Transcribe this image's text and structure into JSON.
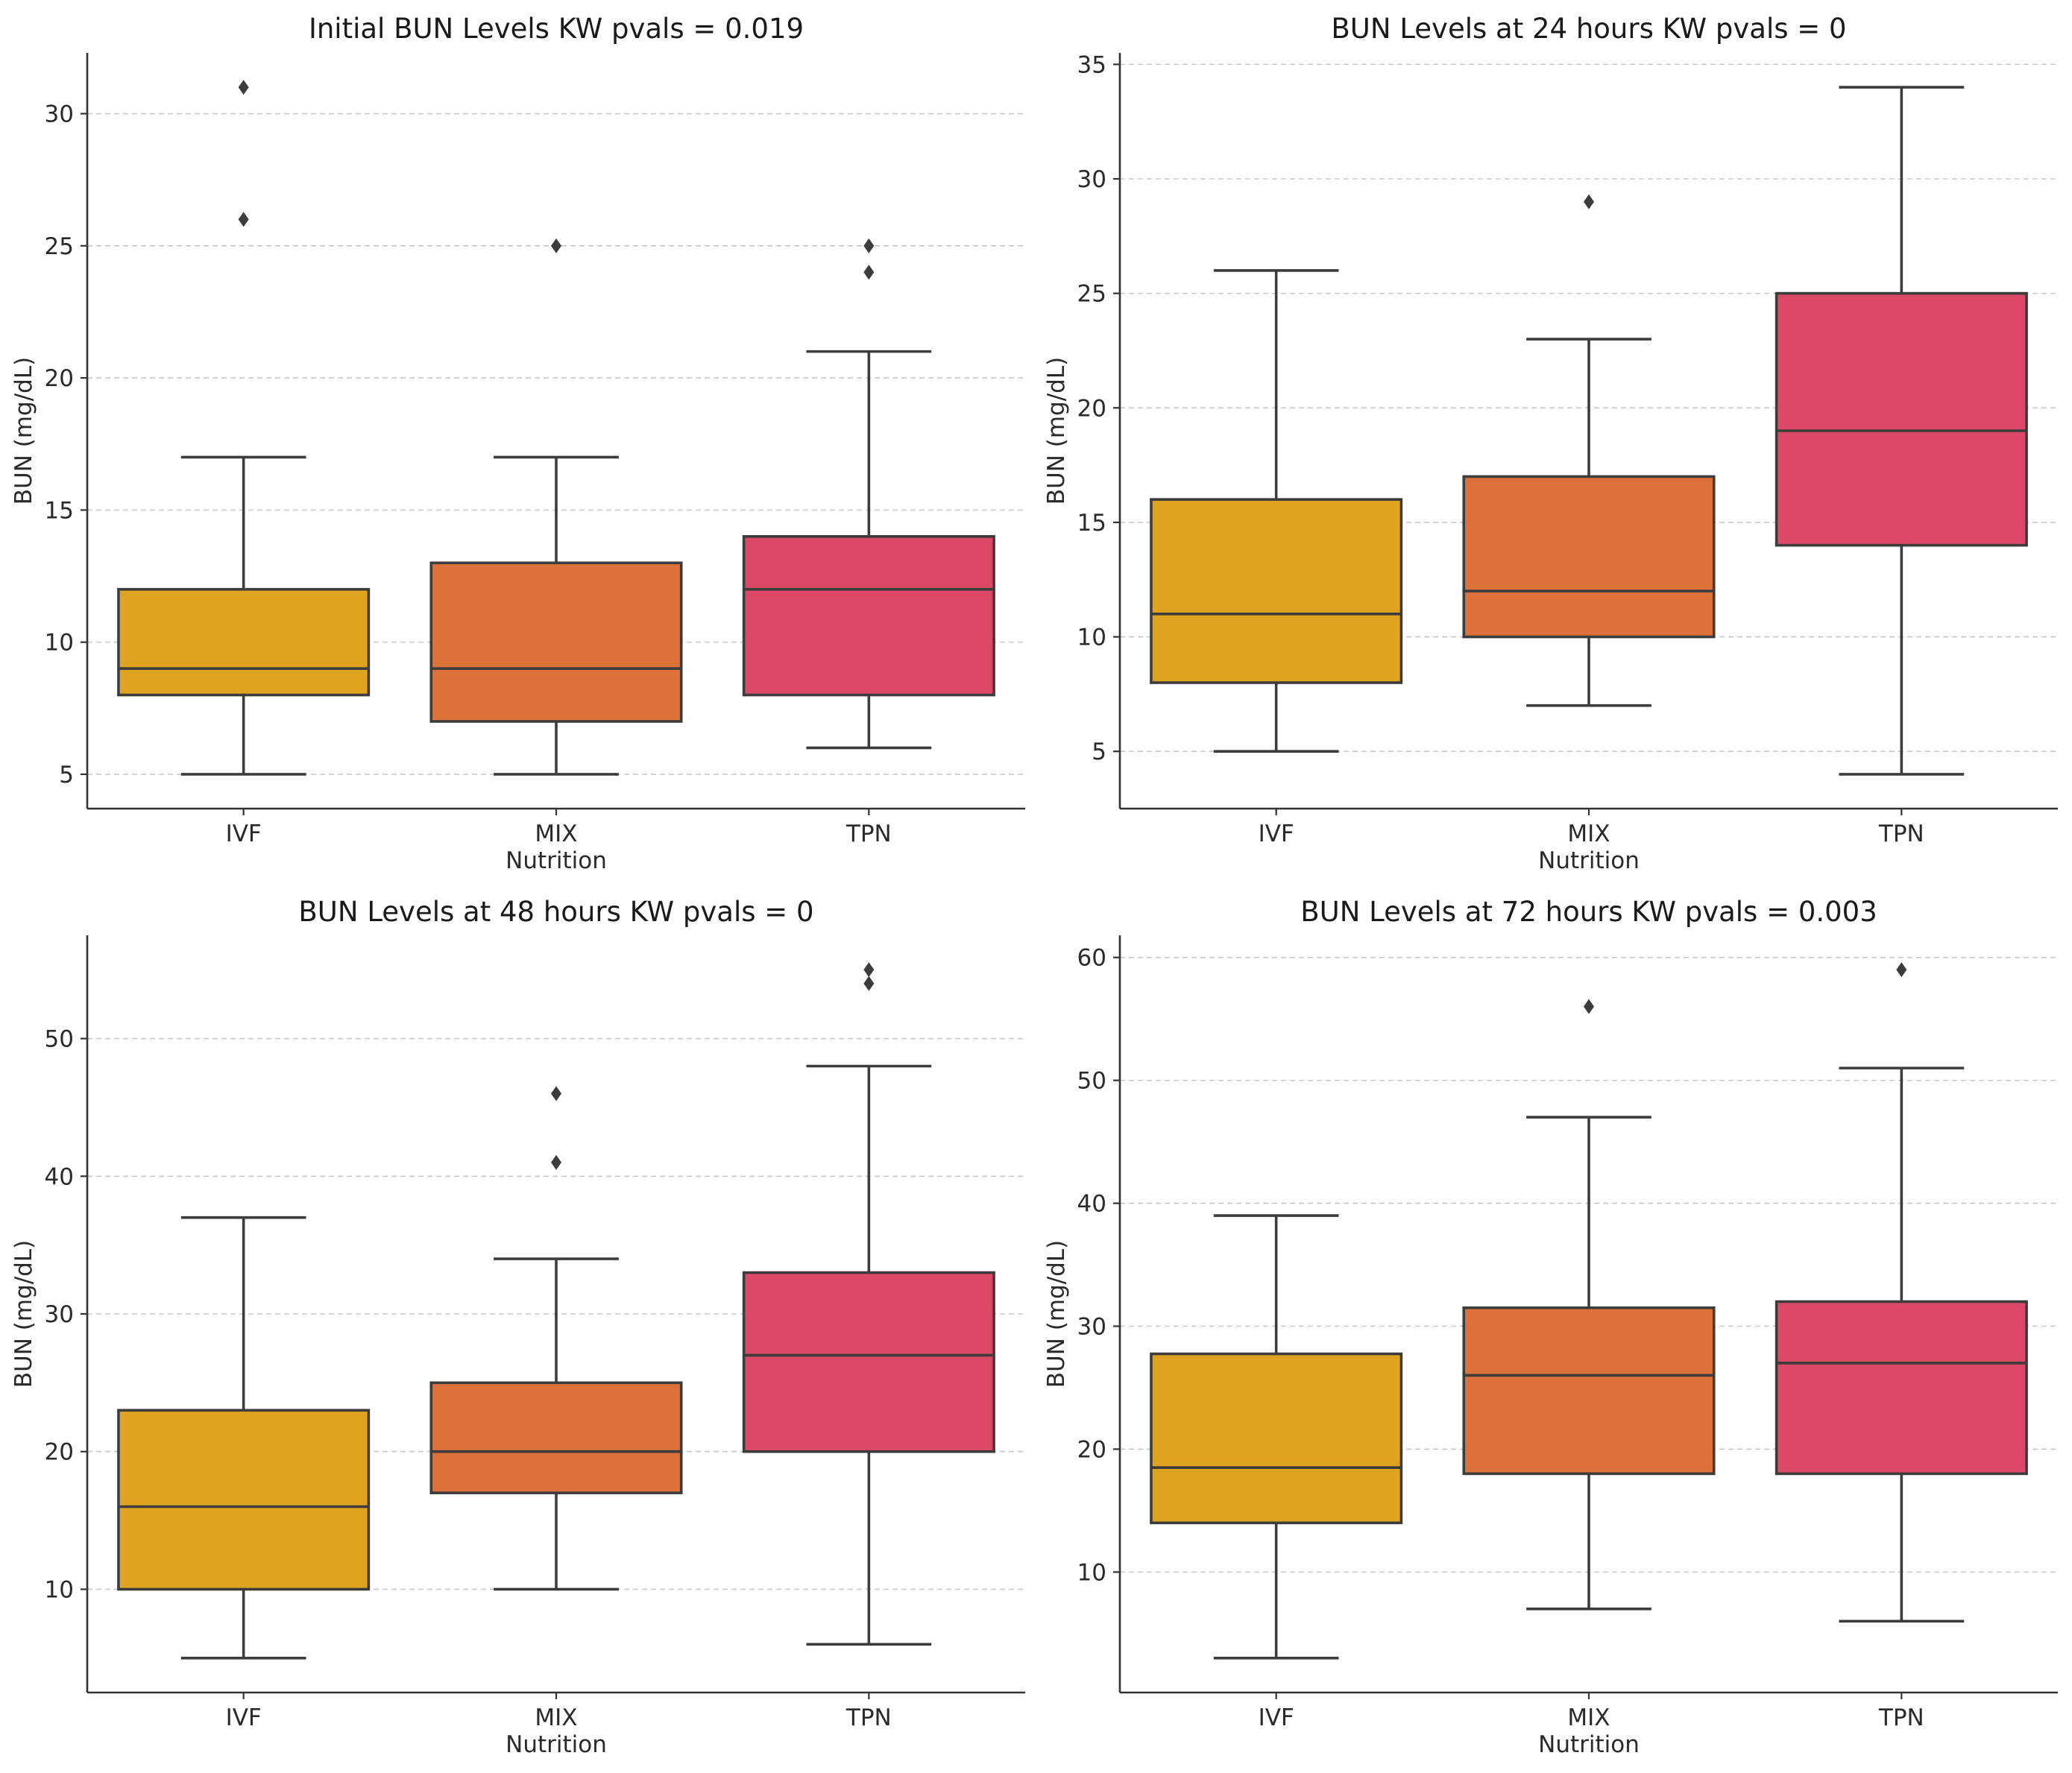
{
  "figure": {
    "colors": {
      "IVF": "#dfa320",
      "MIX": "#dc723a",
      "TPN": "#de4867"
    }
  },
  "chart_data": [
    {
      "type": "box",
      "title": "Initial BUN Levels KW pvals = 0.019",
      "xlabel": "Nutrition",
      "ylabel": "BUN (mg/dL)",
      "ylim": [
        3.7,
        32.3
      ],
      "yticks": [
        5,
        10,
        15,
        20,
        25,
        30
      ],
      "grid": "y-dashed",
      "categories": [
        "IVF",
        "MIX",
        "TPN"
      ],
      "boxes": [
        {
          "category": "IVF",
          "whisker_low": 5,
          "q1": 8,
          "median": 9,
          "q3": 12,
          "whisker_high": 17,
          "outliers": [
            26,
            31
          ]
        },
        {
          "category": "MIX",
          "whisker_low": 5,
          "q1": 7,
          "median": 9,
          "q3": 13,
          "whisker_high": 17,
          "outliers": [
            25
          ]
        },
        {
          "category": "TPN",
          "whisker_low": 6,
          "q1": 8,
          "median": 12,
          "q3": 14,
          "whisker_high": 21,
          "outliers": [
            24,
            25
          ]
        }
      ]
    },
    {
      "type": "box",
      "title": "BUN Levels at 24 hours KW pvals = 0",
      "xlabel": "Nutrition",
      "ylabel": "BUN (mg/dL)",
      "ylim": [
        2.5,
        35.5
      ],
      "yticks": [
        5,
        10,
        15,
        20,
        25,
        30,
        35
      ],
      "grid": "y-dashed",
      "categories": [
        "IVF",
        "MIX",
        "TPN"
      ],
      "boxes": [
        {
          "category": "IVF",
          "whisker_low": 5,
          "q1": 8,
          "median": 11,
          "q3": 16,
          "whisker_high": 26,
          "outliers": []
        },
        {
          "category": "MIX",
          "whisker_low": 7,
          "q1": 10,
          "median": 12,
          "q3": 17,
          "whisker_high": 23,
          "outliers": [
            29
          ]
        },
        {
          "category": "TPN",
          "whisker_low": 4,
          "q1": 14,
          "median": 19,
          "q3": 25,
          "whisker_high": 34,
          "outliers": []
        }
      ]
    },
    {
      "type": "box",
      "title": "BUN Levels at 48 hours KW pvals = 0",
      "xlabel": "Nutrition",
      "ylabel": "BUN (mg/dL)",
      "ylim": [
        2.5,
        57.5
      ],
      "yticks": [
        10,
        20,
        30,
        40,
        50
      ],
      "grid": "y-dashed",
      "categories": [
        "IVF",
        "MIX",
        "TPN"
      ],
      "boxes": [
        {
          "category": "IVF",
          "whisker_low": 5,
          "q1": 10,
          "median": 16,
          "q3": 23,
          "whisker_high": 37,
          "outliers": []
        },
        {
          "category": "MIX",
          "whisker_low": 10,
          "q1": 17,
          "median": 20,
          "q3": 25,
          "whisker_high": 34,
          "outliers": [
            41,
            46
          ]
        },
        {
          "category": "TPN",
          "whisker_low": 6,
          "q1": 20,
          "median": 27,
          "q3": 33,
          "whisker_high": 48,
          "outliers": [
            54,
            55
          ]
        }
      ]
    },
    {
      "type": "box",
      "title": "BUN Levels at 72 hours KW pvals = 0.003",
      "xlabel": "Nutrition",
      "ylabel": "BUN (mg/dL)",
      "ylim": [
        0.2,
        61.8
      ],
      "yticks": [
        10,
        20,
        30,
        40,
        50,
        60
      ],
      "grid": "y-dashed",
      "categories": [
        "IVF",
        "MIX",
        "TPN"
      ],
      "boxes": [
        {
          "category": "IVF",
          "whisker_low": 3,
          "q1": 14,
          "median": 18.5,
          "q3": 27.75,
          "whisker_high": 39,
          "outliers": []
        },
        {
          "category": "MIX",
          "whisker_low": 7,
          "q1": 18,
          "median": 26,
          "q3": 31.5,
          "whisker_high": 47,
          "outliers": [
            56
          ]
        },
        {
          "category": "TPN",
          "whisker_low": 6,
          "q1": 18,
          "median": 27,
          "q3": 32,
          "whisker_high": 51,
          "outliers": [
            59
          ]
        }
      ]
    }
  ]
}
